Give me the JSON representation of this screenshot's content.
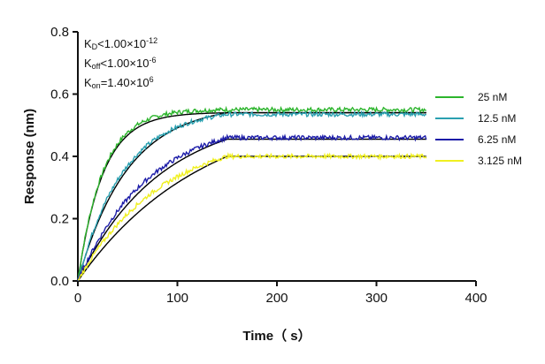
{
  "chart_data": {
    "type": "line",
    "xlabel": "Time（ s）",
    "ylabel": "Response (nm)",
    "xlim": [
      0,
      400
    ],
    "ylim": [
      0,
      0.8
    ],
    "xticks": [
      "0",
      "100",
      "200",
      "300",
      "400"
    ],
    "yticks": [
      "0.0",
      "0.2",
      "0.4",
      "0.6",
      "0.8"
    ],
    "grid": false,
    "legend_position": "right",
    "annotations": {
      "kd": {
        "base": "K",
        "sub": "D",
        "rel": "<1.00×10",
        "exp": "-12"
      },
      "koff": {
        "base": "K",
        "sub": "off",
        "rel": "<1.00×10",
        "exp": "-6"
      },
      "kon": {
        "base": "K",
        "sub": "on",
        "rel": "=1.40×10",
        "exp": "6"
      }
    },
    "association_end": 150,
    "x_end": 350,
    "series": [
      {
        "name": "25 nM",
        "color": "#2db52d",
        "plateau": 0.55,
        "rate": 0.04,
        "fit_plateau": 0.54,
        "fit_rate": 0.04
      },
      {
        "name": "12.5 nM",
        "color": "#2aa0b0",
        "plateau": 0.535,
        "rate": 0.022,
        "fit_plateau": 0.54,
        "fit_rate": 0.02
      },
      {
        "name": "6.25 nM",
        "color": "#1c1ca8",
        "plateau": 0.46,
        "rate": 0.014,
        "fit_plateau": 0.455,
        "fit_rate": 0.012
      },
      {
        "name": "3.125 nM",
        "color": "#f0f020",
        "plateau": 0.4,
        "rate": 0.012,
        "fit_plateau": 0.4,
        "fit_rate": 0.008
      }
    ],
    "fit_color": "#000000"
  }
}
